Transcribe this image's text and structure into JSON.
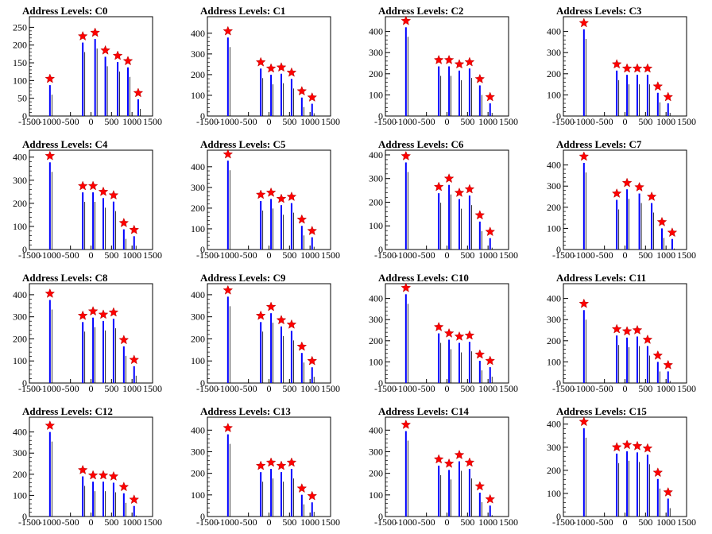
{
  "chart_data": [
    {
      "type": "bar",
      "title": "Address Levels: C0",
      "xlim": [
        -1500,
        1500
      ],
      "ylim": [
        0,
        280
      ],
      "yticks": [
        0,
        50,
        100,
        150,
        200,
        250
      ],
      "xticks": [
        -1500,
        -1000,
        -500,
        0,
        500,
        1000,
        1500
      ],
      "series": [
        {
          "x": [
            -1000,
            -200,
            100,
            350,
            650,
            900,
            1150
          ],
          "values": [
            105,
            225,
            235,
            185,
            170,
            155,
            65
          ]
        }
      ]
    },
    {
      "type": "bar",
      "title": "Address Levels: C1",
      "xlim": [
        -1500,
        1500
      ],
      "ylim": [
        0,
        480
      ],
      "yticks": [
        0,
        100,
        200,
        300,
        400
      ],
      "xticks": [
        -1500,
        -1000,
        -500,
        0,
        500,
        1000,
        1500
      ],
      "series": [
        {
          "x": [
            -1000,
            -200,
            50,
            300,
            550,
            800,
            1050
          ],
          "values": [
            410,
            260,
            230,
            235,
            210,
            120,
            90
          ]
        }
      ]
    },
    {
      "type": "bar",
      "title": "Address Levels: C2",
      "xlim": [
        -1500,
        1500
      ],
      "ylim": [
        0,
        470
      ],
      "yticks": [
        0,
        100,
        200,
        300,
        400
      ],
      "xticks": [
        -1500,
        -1000,
        -500,
        0,
        500,
        1000,
        1500
      ],
      "series": [
        {
          "x": [
            -1000,
            -200,
            50,
            300,
            550,
            800,
            1050
          ],
          "values": [
            450,
            265,
            265,
            245,
            255,
            175,
            90
          ]
        }
      ]
    },
    {
      "type": "bar",
      "title": "Address Levels: C3",
      "xlim": [
        -1500,
        1500
      ],
      "ylim": [
        0,
        470
      ],
      "yticks": [
        0,
        100,
        200,
        300,
        400
      ],
      "xticks": [
        -1500,
        -1000,
        -500,
        0,
        500,
        1000,
        1500
      ],
      "series": [
        {
          "x": [
            -1000,
            -200,
            50,
            300,
            550,
            800,
            1050
          ],
          "values": [
            440,
            245,
            225,
            225,
            225,
            140,
            90
          ]
        }
      ]
    },
    {
      "type": "bar",
      "title": "Address Levels: C4",
      "xlim": [
        -1500,
        1500
      ],
      "ylim": [
        0,
        430
      ],
      "yticks": [
        0,
        100,
        200,
        300,
        400
      ],
      "xticks": [
        -1500,
        -1000,
        -500,
        0,
        500,
        1000,
        1500
      ],
      "series": [
        {
          "x": [
            -1000,
            -200,
            50,
            300,
            550,
            800,
            1050
          ],
          "values": [
            405,
            275,
            275,
            250,
            235,
            115,
            85
          ]
        }
      ]
    },
    {
      "type": "bar",
      "title": "Address Levels: C5",
      "xlim": [
        -1500,
        1500
      ],
      "ylim": [
        0,
        480
      ],
      "yticks": [
        0,
        100,
        200,
        300,
        400
      ],
      "xticks": [
        -1500,
        -1000,
        -500,
        0,
        500,
        1000,
        1500
      ],
      "series": [
        {
          "x": [
            -1000,
            -200,
            50,
            300,
            550,
            800,
            1050
          ],
          "values": [
            460,
            265,
            275,
            245,
            255,
            145,
            90
          ]
        }
      ]
    },
    {
      "type": "bar",
      "title": "Address Levels: C6",
      "xlim": [
        -1500,
        1500
      ],
      "ylim": [
        0,
        420
      ],
      "yticks": [
        0,
        100,
        200,
        300,
        400
      ],
      "xticks": [
        -1500,
        -1000,
        -500,
        0,
        500,
        1000,
        1500
      ],
      "series": [
        {
          "x": [
            -1000,
            -200,
            50,
            300,
            550,
            800,
            1050
          ],
          "values": [
            395,
            265,
            300,
            240,
            255,
            145,
            75
          ]
        }
      ]
    },
    {
      "type": "bar",
      "title": "Address Levels: C7",
      "xlim": [
        -1500,
        1500
      ],
      "ylim": [
        0,
        470
      ],
      "yticks": [
        0,
        100,
        200,
        300,
        400
      ],
      "xticks": [
        -1500,
        -1000,
        -500,
        0,
        500,
        1000,
        1500
      ],
      "series": [
        {
          "x": [
            -1000,
            -200,
            50,
            350,
            650,
            900,
            1150
          ],
          "values": [
            440,
            265,
            315,
            295,
            250,
            130,
            80
          ]
        }
      ]
    },
    {
      "type": "bar",
      "title": "Address Levels: C8",
      "xlim": [
        -1500,
        1500
      ],
      "ylim": [
        0,
        450
      ],
      "yticks": [
        0,
        100,
        200,
        300,
        400
      ],
      "xticks": [
        -1500,
        -1000,
        -500,
        0,
        500,
        1000,
        1500
      ],
      "series": [
        {
          "x": [
            -1000,
            -200,
            50,
            300,
            550,
            800,
            1050
          ],
          "values": [
            405,
            305,
            325,
            310,
            320,
            195,
            105
          ]
        }
      ]
    },
    {
      "type": "bar",
      "title": "Address Levels: C9",
      "xlim": [
        -1500,
        1500
      ],
      "ylim": [
        0,
        450
      ],
      "yticks": [
        0,
        100,
        200,
        300,
        400
      ],
      "xticks": [
        -1500,
        -1000,
        -500,
        0,
        500,
        1000,
        1500
      ],
      "series": [
        {
          "x": [
            -1000,
            -200,
            50,
            300,
            550,
            800,
            1050
          ],
          "values": [
            420,
            305,
            345,
            285,
            265,
            165,
            100
          ]
        }
      ]
    },
    {
      "type": "bar",
      "title": "Address Levels: C10",
      "xlim": [
        -1500,
        1500
      ],
      "ylim": [
        0,
        470
      ],
      "yticks": [
        0,
        100,
        200,
        300,
        400
      ],
      "xticks": [
        -1500,
        -1000,
        -500,
        0,
        500,
        1000,
        1500
      ],
      "series": [
        {
          "x": [
            -1000,
            -200,
            50,
            300,
            550,
            800,
            1050
          ],
          "values": [
            450,
            265,
            235,
            220,
            225,
            135,
            105
          ]
        }
      ]
    },
    {
      "type": "bar",
      "title": "Address Levels: C11",
      "xlim": [
        -1500,
        1500
      ],
      "ylim": [
        0,
        470
      ],
      "yticks": [
        0,
        100,
        200,
        300,
        400
      ],
      "xticks": [
        -1500,
        -1000,
        -500,
        0,
        500,
        1000,
        1500
      ],
      "series": [
        {
          "x": [
            -1000,
            -200,
            50,
            300,
            550,
            800,
            1050
          ],
          "values": [
            375,
            255,
            245,
            250,
            205,
            130,
            85
          ]
        }
      ]
    },
    {
      "type": "bar",
      "title": "Address Levels: C12",
      "xlim": [
        -1500,
        1500
      ],
      "ylim": [
        0,
        470
      ],
      "yticks": [
        0,
        100,
        200,
        300,
        400
      ],
      "xticks": [
        -1500,
        -1000,
        -500,
        0,
        500,
        1000,
        1500
      ],
      "series": [
        {
          "x": [
            -1000,
            -200,
            50,
            300,
            550,
            800,
            1050
          ],
          "values": [
            430,
            220,
            195,
            195,
            190,
            140,
            80
          ]
        }
      ]
    },
    {
      "type": "bar",
      "title": "Address Levels: C13",
      "xlim": [
        -1500,
        1500
      ],
      "ylim": [
        0,
        460
      ],
      "yticks": [
        0,
        100,
        200,
        300,
        400
      ],
      "xticks": [
        -1500,
        -1000,
        -500,
        0,
        500,
        1000,
        1500
      ],
      "series": [
        {
          "x": [
            -1000,
            -200,
            50,
            300,
            550,
            800,
            1050
          ],
          "values": [
            410,
            235,
            250,
            235,
            250,
            130,
            95
          ]
        }
      ]
    },
    {
      "type": "bar",
      "title": "Address Levels: C14",
      "xlim": [
        -1500,
        1500
      ],
      "ylim": [
        0,
        460
      ],
      "yticks": [
        0,
        100,
        200,
        300,
        400
      ],
      "xticks": [
        -1500,
        -1000,
        -500,
        0,
        500,
        1000,
        1500
      ],
      "series": [
        {
          "x": [
            -1000,
            -200,
            50,
            300,
            550,
            800,
            1050
          ],
          "values": [
            425,
            265,
            245,
            285,
            250,
            140,
            80
          ]
        }
      ]
    },
    {
      "type": "bar",
      "title": "Address Levels: C15",
      "xlim": [
        -1500,
        1500
      ],
      "ylim": [
        0,
        430
      ],
      "yticks": [
        0,
        100,
        200,
        300,
        400
      ],
      "xticks": [
        -1500,
        -1000,
        -500,
        0,
        500,
        1000,
        1500
      ],
      "series": [
        {
          "x": [
            -1000,
            -200,
            50,
            300,
            550,
            800,
            1050
          ],
          "values": [
            410,
            300,
            310,
            305,
            295,
            190,
            105
          ]
        }
      ]
    }
  ],
  "colors": {
    "bar": "#0000ff",
    "outline": "#000000",
    "marker": "#ff0000"
  }
}
